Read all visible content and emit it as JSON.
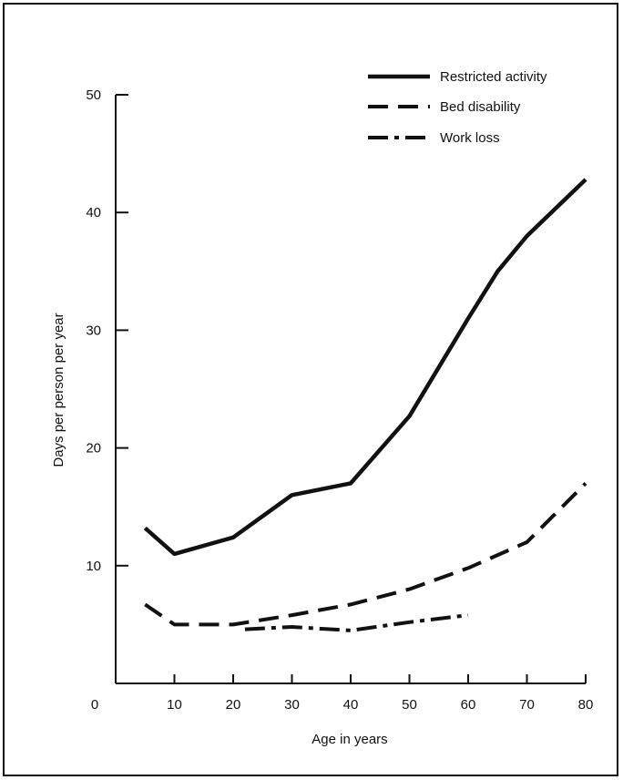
{
  "chart_data": {
    "type": "line",
    "xlabel": "Age in years",
    "ylabel": "Days per person per year",
    "xlim": [
      0,
      80
    ],
    "ylim": [
      0,
      50
    ],
    "x_ticks": [
      0,
      10,
      20,
      30,
      40,
      50,
      60,
      70,
      80
    ],
    "y_ticks": [
      10,
      20,
      30,
      40,
      50
    ],
    "legend_position": "top-right",
    "grid": false,
    "series": [
      {
        "name": "Restricted activity",
        "style": "solid",
        "x": [
          5,
          10,
          20,
          30,
          40,
          50,
          60,
          65,
          70,
          80
        ],
        "y": [
          13.2,
          11.0,
          12.4,
          16.0,
          17.0,
          22.7,
          31.0,
          35.0,
          38.0,
          42.8
        ]
      },
      {
        "name": "Bed disability",
        "style": "dashed",
        "x": [
          5,
          10,
          20,
          30,
          40,
          50,
          60,
          70,
          80
        ],
        "y": [
          6.7,
          5.0,
          5.0,
          5.8,
          6.7,
          8.0,
          9.8,
          12.0,
          17.0
        ]
      },
      {
        "name": "Work loss",
        "style": "dashdot",
        "x": [
          22,
          30,
          40,
          50,
          60
        ],
        "y": [
          4.6,
          4.8,
          4.5,
          5.2,
          5.8
        ]
      }
    ],
    "color": "#111111"
  }
}
